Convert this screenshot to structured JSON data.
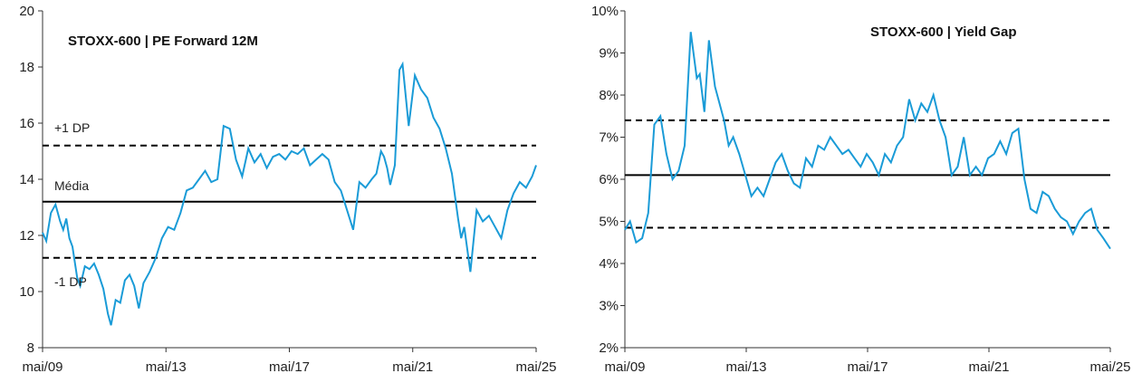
{
  "chart_data": [
    {
      "type": "line",
      "title": "STOXX-600 | PE Forward 12M",
      "xlabel": "",
      "ylabel": "",
      "x_tick_labels": [
        "mai/09",
        "mai/13",
        "mai/17",
        "mai/21",
        "mai/25"
      ],
      "x_tick_years": [
        2009.33,
        2013.33,
        2017.33,
        2021.33,
        2025.33
      ],
      "ylim": [
        8,
        20
      ],
      "y_ticks": [
        "8",
        "10",
        "12",
        "14",
        "16",
        "18",
        "20"
      ],
      "y_tick_values": [
        8,
        10,
        12,
        14,
        16,
        18,
        20
      ],
      "reference_lines": [
        {
          "label": "+1 DP",
          "value": 15.2,
          "style": "dashed"
        },
        {
          "label": "Média",
          "value": 13.2,
          "style": "solid"
        },
        {
          "label": "-1 DP",
          "value": 11.2,
          "style": "dashed"
        }
      ],
      "series": [
        {
          "color": "#1a9bd7",
          "x": [
            2009.33,
            2009.45,
            2009.6,
            2009.75,
            2009.9,
            2010.0,
            2010.1,
            2010.2,
            2010.3,
            2010.45,
            2010.55,
            2010.7,
            2010.85,
            2011.0,
            2011.15,
            2011.3,
            2011.45,
            2011.55,
            2011.7,
            2011.85,
            2012.0,
            2012.15,
            2012.3,
            2012.45,
            2012.6,
            2012.8,
            2013.0,
            2013.2,
            2013.4,
            2013.6,
            2013.8,
            2014.0,
            2014.2,
            2014.4,
            2014.6,
            2014.8,
            2015.0,
            2015.2,
            2015.4,
            2015.6,
            2015.8,
            2016.0,
            2016.2,
            2016.4,
            2016.6,
            2016.8,
            2017.0,
            2017.2,
            2017.4,
            2017.6,
            2017.8,
            2018.0,
            2018.2,
            2018.4,
            2018.6,
            2018.8,
            2019.0,
            2019.2,
            2019.4,
            2019.6,
            2019.8,
            2020.0,
            2020.15,
            2020.3,
            2020.4,
            2020.5,
            2020.6,
            2020.75,
            2020.9,
            2021.0,
            2021.2,
            2021.4,
            2021.6,
            2021.8,
            2022.0,
            2022.2,
            2022.4,
            2022.6,
            2022.8,
            2022.9,
            2023.0,
            2023.2,
            2023.4,
            2023.6,
            2023.8,
            2024.0,
            2024.2,
            2024.4,
            2024.6,
            2024.8,
            2025.0,
            2025.2,
            2025.33
          ],
          "y": [
            12.1,
            11.8,
            12.8,
            13.1,
            12.5,
            12.2,
            12.6,
            11.9,
            11.6,
            10.5,
            10.2,
            10.9,
            10.8,
            11.0,
            10.6,
            10.1,
            9.2,
            8.8,
            9.7,
            9.6,
            10.4,
            10.6,
            10.2,
            9.4,
            10.3,
            10.7,
            11.2,
            11.9,
            12.3,
            12.2,
            12.8,
            13.6,
            13.7,
            14.0,
            14.3,
            13.9,
            14.0,
            15.9,
            15.8,
            14.7,
            14.1,
            15.1,
            14.6,
            14.9,
            14.4,
            14.8,
            14.9,
            14.7,
            15.0,
            14.9,
            15.1,
            14.5,
            14.7,
            14.9,
            14.7,
            13.9,
            13.6,
            12.9,
            12.2,
            13.9,
            13.7,
            14.0,
            14.2,
            15.0,
            14.8,
            14.4,
            13.8,
            14.5,
            17.9,
            18.1,
            15.9,
            17.7,
            17.2,
            16.9,
            16.2,
            15.8,
            15.1,
            14.2,
            12.6,
            11.9,
            12.3,
            10.7,
            12.9,
            12.5,
            12.7,
            12.3,
            11.9,
            12.9,
            13.5,
            13.9,
            13.7,
            14.1,
            14.5
          ]
        }
      ]
    },
    {
      "type": "line",
      "title": "STOXX-600 | Yield Gap",
      "xlabel": "",
      "ylabel": "",
      "x_tick_labels": [
        "mai/09",
        "mai/13",
        "mai/17",
        "mai/21",
        "mai/25"
      ],
      "x_tick_years": [
        2009.33,
        2013.33,
        2017.33,
        2021.33,
        2025.33
      ],
      "ylim": [
        2,
        10
      ],
      "y_ticks": [
        "2%",
        "3%",
        "4%",
        "5%",
        "6%",
        "7%",
        "8%",
        "9%",
        "10%"
      ],
      "y_tick_values": [
        2,
        3,
        4,
        5,
        6,
        7,
        8,
        9,
        10
      ],
      "reference_lines": [
        {
          "label": "",
          "value": 7.4,
          "style": "dashed"
        },
        {
          "label": "",
          "value": 6.1,
          "style": "solid"
        },
        {
          "label": "",
          "value": 4.85,
          "style": "dashed"
        }
      ],
      "series": [
        {
          "color": "#1a9bd7",
          "x": [
            2009.33,
            2009.5,
            2009.7,
            2009.9,
            2010.1,
            2010.3,
            2010.5,
            2010.7,
            2010.9,
            2011.1,
            2011.3,
            2011.5,
            2011.7,
            2011.8,
            2011.95,
            2012.1,
            2012.3,
            2012.45,
            2012.6,
            2012.75,
            2012.9,
            2013.1,
            2013.3,
            2013.5,
            2013.7,
            2013.9,
            2014.1,
            2014.3,
            2014.5,
            2014.7,
            2014.9,
            2015.1,
            2015.3,
            2015.5,
            2015.7,
            2015.9,
            2016.1,
            2016.3,
            2016.5,
            2016.7,
            2016.9,
            2017.1,
            2017.3,
            2017.5,
            2017.7,
            2017.9,
            2018.1,
            2018.3,
            2018.5,
            2018.7,
            2018.9,
            2019.1,
            2019.3,
            2019.5,
            2019.7,
            2019.9,
            2020.1,
            2020.3,
            2020.5,
            2020.7,
            2020.9,
            2021.1,
            2021.3,
            2021.5,
            2021.7,
            2021.9,
            2022.1,
            2022.3,
            2022.5,
            2022.7,
            2022.9,
            2023.1,
            2023.3,
            2023.5,
            2023.7,
            2023.9,
            2024.1,
            2024.3,
            2024.5,
            2024.7,
            2024.9,
            2025.1,
            2025.33
          ],
          "y": [
            4.8,
            5.0,
            4.5,
            4.6,
            5.2,
            7.3,
            7.5,
            6.6,
            6.0,
            6.2,
            6.8,
            9.5,
            8.4,
            8.5,
            7.6,
            9.3,
            8.2,
            7.8,
            7.4,
            6.8,
            7.0,
            6.6,
            6.1,
            5.6,
            5.8,
            5.6,
            6.0,
            6.4,
            6.6,
            6.2,
            5.9,
            5.8,
            6.5,
            6.3,
            6.8,
            6.7,
            7.0,
            6.8,
            6.6,
            6.7,
            6.5,
            6.3,
            6.6,
            6.4,
            6.1,
            6.6,
            6.4,
            6.8,
            7.0,
            7.9,
            7.4,
            7.8,
            7.6,
            8.0,
            7.4,
            7.0,
            6.1,
            6.3,
            7.0,
            6.1,
            6.3,
            6.1,
            6.5,
            6.6,
            6.9,
            6.6,
            7.1,
            7.2,
            6.0,
            5.3,
            5.2,
            5.7,
            5.6,
            5.3,
            5.1,
            5.0,
            4.7,
            5.0,
            5.2,
            5.3,
            4.8,
            4.6,
            4.35
          ]
        }
      ]
    }
  ]
}
